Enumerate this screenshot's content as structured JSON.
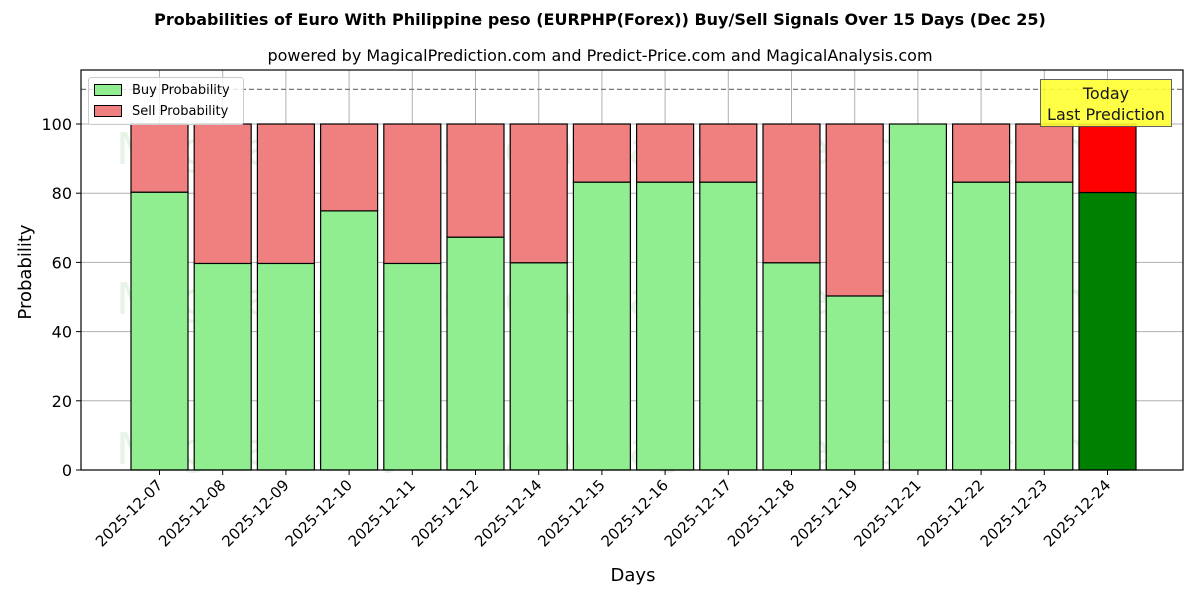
{
  "chart_data": {
    "type": "bar",
    "stacked": true,
    "title": "Probabilities of Euro With Philippine peso (EURPHP(Forex)) Buy/Sell Signals Over 15 Days (Dec 25)",
    "subtitle": "powered by MagicalPrediction.com and Predict-Price.com and MagicalAnalysis.com",
    "xlabel": "Days",
    "ylabel": "Probability",
    "ylim": [
      0,
      115
    ],
    "yticks": [
      0,
      20,
      40,
      60,
      80,
      100
    ],
    "reference_line": 110,
    "grid": true,
    "legend_position": "upper left",
    "categories": [
      "2025-12-07",
      "2025-12-08",
      "2025-12-09",
      "2025-12-10",
      "2025-12-11",
      "2025-12-12",
      "2025-12-14",
      "2025-12-15",
      "2025-12-16",
      "2025-12-17",
      "2025-12-18",
      "2025-12-19",
      "2025-12-21",
      "2025-12-22",
      "2025-12-23",
      "2025-12-24"
    ],
    "series": [
      {
        "name": "Buy Probability",
        "color": "#90ee90",
        "values": [
          80.3,
          59.7,
          59.7,
          74.9,
          59.7,
          67.3,
          59.9,
          83.2,
          83.2,
          83.2,
          59.9,
          50.3,
          100,
          83.2,
          83.2,
          80.2
        ]
      },
      {
        "name": "Sell Probability",
        "color": "#f08080",
        "values": [
          19.7,
          40.3,
          40.3,
          25.1,
          40.3,
          32.7,
          40.1,
          16.8,
          16.8,
          16.8,
          40.1,
          49.7,
          0,
          16.8,
          16.8,
          19.8
        ]
      }
    ],
    "highlight": {
      "index": 15,
      "buy_color": "#008000",
      "sell_color": "#ff0000",
      "annotation": "Today\nLast Prediction"
    },
    "watermarks": [
      "MagicalAnalysis.com",
      "MagicalPrediction.com"
    ]
  },
  "legend": {
    "buy": "Buy Probability",
    "sell": "Sell Probability"
  },
  "annotation": {
    "line1": "Today",
    "line2": "Last Prediction"
  }
}
